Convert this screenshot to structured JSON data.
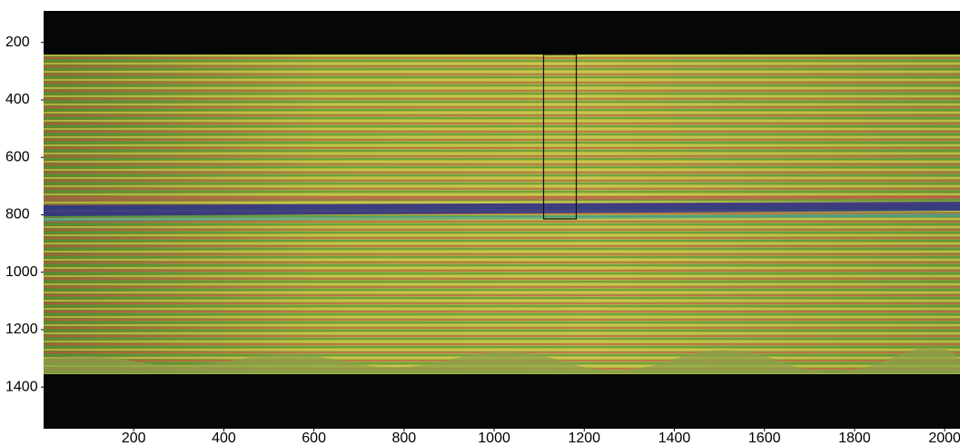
{
  "chart_data": {
    "type": "image",
    "xlim": [
      0,
      2034
    ],
    "xticks": [
      200,
      400,
      600,
      800,
      1000,
      1200,
      1400,
      1600,
      1800,
      2000
    ],
    "ylim": [
      90,
      1545
    ],
    "y_inverted": true,
    "yticks": [
      200,
      400,
      600,
      800,
      1000,
      1200,
      1400
    ]
  }
}
